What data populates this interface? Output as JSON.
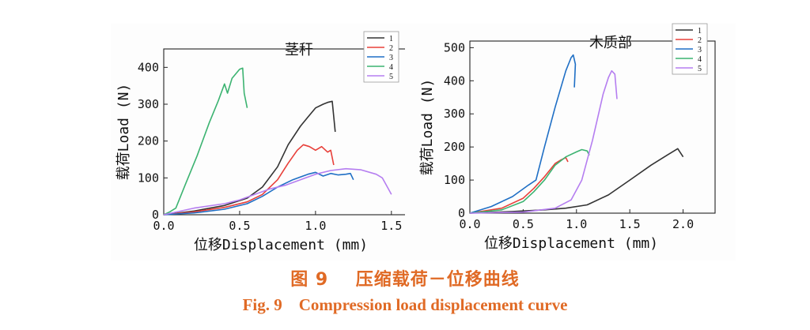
{
  "figure": {
    "caption_cn_label": "图 9",
    "caption_cn_text": "压缩载荷－位移曲线",
    "caption_en_label": "Fig. 9",
    "caption_en_text": "Compression load displacement curve"
  },
  "chart_data": [
    {
      "type": "line",
      "title": "茎秆",
      "xlabel": "位移Displacement (mm)",
      "ylabel": "载荷Load (N)",
      "xlim": [
        0,
        1.6
      ],
      "ylim": [
        0,
        450
      ],
      "xticks": [
        0.0,
        0.5,
        1.0,
        1.5
      ],
      "xtick_labels": [
        "0.0",
        "0.5",
        "1.0",
        "1.5"
      ],
      "yticks": [
        0,
        100,
        200,
        300,
        400
      ],
      "ytick_labels": [
        "0",
        "100",
        "200",
        "300",
        "400"
      ],
      "legend": "top-right",
      "series": [
        {
          "name": "1",
          "color": "#333333",
          "x": [
            0,
            0.2,
            0.4,
            0.55,
            0.65,
            0.75,
            0.82,
            0.9,
            0.95,
            1.0,
            1.05,
            1.08,
            1.11,
            1.13
          ],
          "y": [
            0,
            10,
            25,
            45,
            75,
            130,
            190,
            240,
            265,
            290,
            300,
            305,
            308,
            225
          ]
        },
        {
          "name": "2",
          "color": "#e8403a",
          "x": [
            0,
            0.2,
            0.4,
            0.55,
            0.65,
            0.75,
            0.82,
            0.88,
            0.92,
            0.96,
            1.0,
            1.04,
            1.08,
            1.1,
            1.12
          ],
          "y": [
            0,
            8,
            20,
            35,
            55,
            95,
            140,
            175,
            190,
            185,
            175,
            185,
            170,
            175,
            135
          ]
        },
        {
          "name": "3",
          "color": "#1f6fc5",
          "x": [
            0,
            0.2,
            0.4,
            0.55,
            0.65,
            0.75,
            0.85,
            0.95,
            1.0,
            1.05,
            1.1,
            1.15,
            1.2,
            1.23,
            1.25
          ],
          "y": [
            0,
            5,
            15,
            30,
            50,
            75,
            95,
            110,
            115,
            105,
            112,
            108,
            110,
            112,
            95
          ]
        },
        {
          "name": "4",
          "color": "#3cb371",
          "x": [
            0,
            0.04,
            0.08,
            0.14,
            0.22,
            0.3,
            0.36,
            0.4,
            0.42,
            0.45,
            0.5,
            0.52,
            0.53,
            0.55
          ],
          "y": [
            0,
            8,
            18,
            80,
            160,
            250,
            310,
            355,
            330,
            370,
            395,
            398,
            330,
            290
          ]
        },
        {
          "name": "5",
          "color": "#b57ef0",
          "x": [
            0,
            0.2,
            0.4,
            0.5,
            0.6,
            0.7,
            0.8,
            0.9,
            1.0,
            1.1,
            1.2,
            1.3,
            1.4,
            1.44,
            1.48,
            1.5
          ],
          "y": [
            0,
            18,
            30,
            40,
            55,
            70,
            80,
            95,
            110,
            120,
            125,
            122,
            110,
            100,
            70,
            55
          ]
        }
      ]
    },
    {
      "type": "line",
      "title": "木质部",
      "xlabel": "位移Displacement (mm)",
      "ylabel": "载荷Load (N)",
      "xlim": [
        0,
        2.3
      ],
      "ylim": [
        0,
        520
      ],
      "xticks": [
        0.0,
        0.5,
        1.0,
        1.5,
        2.0
      ],
      "xtick_labels": [
        "0.0",
        "0.5",
        "1.0",
        "1.5",
        "2.0"
      ],
      "yticks": [
        0,
        100,
        200,
        300,
        400,
        500
      ],
      "ytick_labels": [
        "0",
        "100",
        "200",
        "300",
        "400",
        "500"
      ],
      "legend": "top-right",
      "series": [
        {
          "name": "1",
          "color": "#333333",
          "x": [
            0,
            0.4,
            0.7,
            0.9,
            1.1,
            1.3,
            1.5,
            1.7,
            1.85,
            1.95,
            2.0
          ],
          "y": [
            0,
            5,
            10,
            15,
            25,
            55,
            100,
            145,
            175,
            195,
            170
          ]
        },
        {
          "name": "2",
          "color": "#e8403a",
          "x": [
            0,
            0.3,
            0.5,
            0.6,
            0.7,
            0.8,
            0.85,
            0.9,
            0.92
          ],
          "y": [
            0,
            15,
            45,
            75,
            110,
            150,
            160,
            168,
            155
          ]
        },
        {
          "name": "3",
          "color": "#1f6fc5",
          "x": [
            0,
            0.2,
            0.4,
            0.55,
            0.62,
            0.7,
            0.8,
            0.9,
            0.95,
            0.97,
            0.99,
            0.98
          ],
          "y": [
            0,
            20,
            50,
            85,
            100,
            200,
            320,
            430,
            470,
            478,
            450,
            380
          ]
        },
        {
          "name": "4",
          "color": "#3cb371",
          "x": [
            0,
            0.3,
            0.5,
            0.6,
            0.7,
            0.8,
            0.9,
            1.0,
            1.05,
            1.1,
            1.12
          ],
          "y": [
            0,
            10,
            35,
            65,
            100,
            145,
            170,
            185,
            192,
            188,
            175
          ]
        },
        {
          "name": "5",
          "color": "#b57ef0",
          "x": [
            0,
            0.5,
            0.8,
            0.95,
            1.05,
            1.15,
            1.25,
            1.3,
            1.33,
            1.36,
            1.38
          ],
          "y": [
            0,
            3,
            15,
            40,
            100,
            220,
            360,
            410,
            430,
            420,
            345
          ]
        }
      ]
    }
  ]
}
